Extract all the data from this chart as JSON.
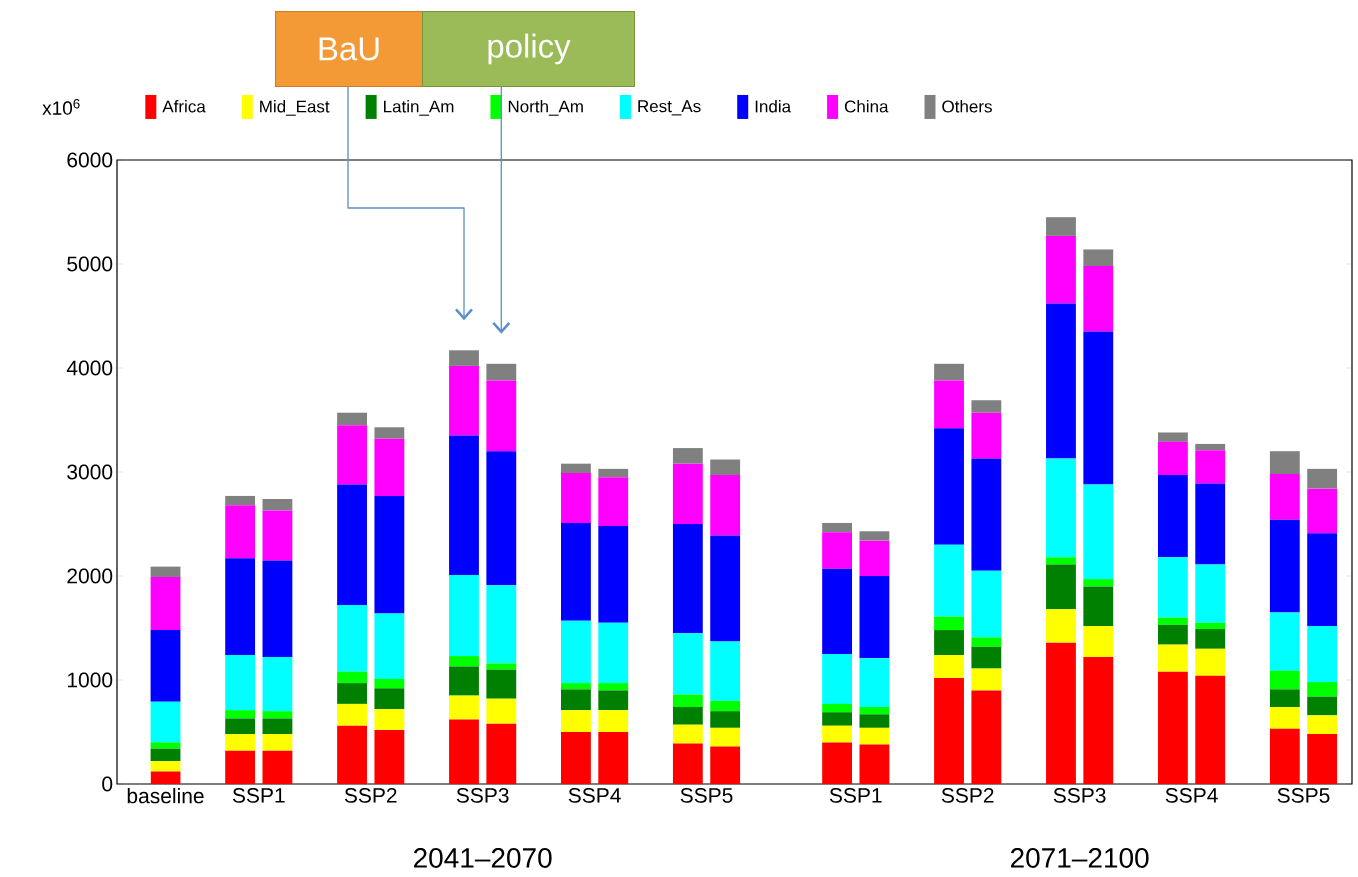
{
  "chart_data": {
    "type": "bar",
    "stacked": true,
    "legend": "top",
    "ylabel": "x10$^{6}$",
    "ylim": [
      0,
      6000
    ],
    "yticks": [
      0,
      1000,
      2000,
      3000,
      4000,
      5000,
      6000
    ],
    "categories": [
      "baseline",
      null,
      "SSP1",
      null,
      null,
      "SSP2",
      null,
      null,
      "SSP3",
      null,
      null,
      "SSP4",
      null,
      null,
      "SSP5",
      null,
      null,
      null,
      "SSP1",
      null,
      null,
      "SSP2",
      null,
      null,
      "SSP3",
      null,
      null,
      "SSP4",
      null,
      null,
      "SSP5",
      null
    ],
    "annotations": [
      "2041–2070",
      "2071–2100",
      "BaU",
      "policy"
    ],
    "series": [
      {
        "name": "Africa",
        "color": "#ff0000",
        "values": [
          120,
          null,
          320,
          320,
          null,
          560,
          520,
          null,
          620,
          580,
          null,
          500,
          500,
          null,
          390,
          360,
          null,
          null,
          400,
          380,
          null,
          1020,
          900,
          null,
          1360,
          1220,
          null,
          1080,
          1040,
          null,
          530,
          480
        ]
      },
      {
        "name": "Mid_East",
        "color": "#ffff00",
        "values": [
          100,
          null,
          160,
          160,
          null,
          210,
          200,
          null,
          230,
          240,
          null,
          210,
          210,
          null,
          180,
          180,
          null,
          null,
          160,
          160,
          null,
          220,
          210,
          null,
          320,
          300,
          null,
          260,
          260,
          null,
          210,
          180
        ]
      },
      {
        "name": "Latin_Am",
        "color": "#008000",
        "values": [
          120,
          null,
          150,
          150,
          null,
          200,
          200,
          null,
          280,
          280,
          null,
          200,
          190,
          null,
          170,
          160,
          null,
          null,
          130,
          130,
          null,
          240,
          210,
          null,
          430,
          380,
          null,
          190,
          190,
          null,
          170,
          180
        ]
      },
      {
        "name": "North_Am",
        "color": "#00ff00",
        "values": [
          60,
          null,
          80,
          70,
          null,
          110,
          90,
          null,
          100,
          60,
          null,
          60,
          70,
          null,
          120,
          100,
          null,
          null,
          80,
          70,
          null,
          130,
          90,
          null,
          70,
          70,
          null,
          70,
          60,
          null,
          180,
          140
        ]
      },
      {
        "name": "Rest_As",
        "color": "#00ffff",
        "values": [
          390,
          null,
          530,
          520,
          null,
          640,
          630,
          null,
          780,
          750,
          null,
          600,
          580,
          null,
          590,
          570,
          null,
          null,
          480,
          470,
          null,
          690,
          640,
          null,
          950,
          910,
          null,
          580,
          560,
          null,
          560,
          540
        ]
      },
      {
        "name": "India",
        "color": "#0000ff",
        "values": [
          690,
          null,
          930,
          930,
          null,
          1160,
          1130,
          null,
          1340,
          1290,
          null,
          940,
          930,
          null,
          1050,
          1020,
          null,
          null,
          820,
          790,
          null,
          1120,
          1080,
          null,
          1490,
          1470,
          null,
          790,
          780,
          null,
          890,
          890
        ]
      },
      {
        "name": "China",
        "color": "#ff00ff",
        "values": [
          510,
          null,
          510,
          480,
          null,
          570,
          550,
          null,
          670,
          680,
          null,
          480,
          470,
          null,
          580,
          580,
          null,
          null,
          350,
          340,
          null,
          460,
          440,
          null,
          650,
          630,
          null,
          320,
          320,
          null,
          440,
          430
        ]
      },
      {
        "name": "Others",
        "color": "#808080",
        "values": [
          100,
          null,
          90,
          110,
          null,
          120,
          110,
          null,
          150,
          160,
          null,
          90,
          80,
          null,
          150,
          150,
          null,
          null,
          90,
          90,
          null,
          160,
          120,
          null,
          180,
          160,
          null,
          90,
          60,
          null,
          220,
          190
        ]
      }
    ]
  }
}
